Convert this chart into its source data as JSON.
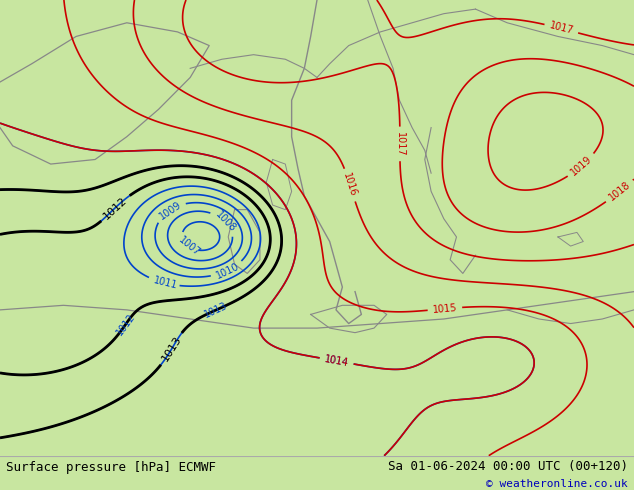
{
  "title_left": "Surface pressure [hPa] ECMWF",
  "title_right": "Sa 01-06-2024 00:00 UTC (00+120)",
  "copyright": "© weatheronline.co.uk",
  "bg_color": "#c8e6a0",
  "fig_width": 6.34,
  "fig_height": 4.9,
  "dpi": 100,
  "bottom_bar_color": "#ffffff",
  "bottom_bar_height": 0.07,
  "title_fontsize": 9,
  "copyright_fontsize": 8,
  "border_color": "#aaaaaa",
  "blue_color": "#0044cc",
  "red_color": "#cc0000",
  "black_color": "#000000",
  "gray_color": "#888888"
}
